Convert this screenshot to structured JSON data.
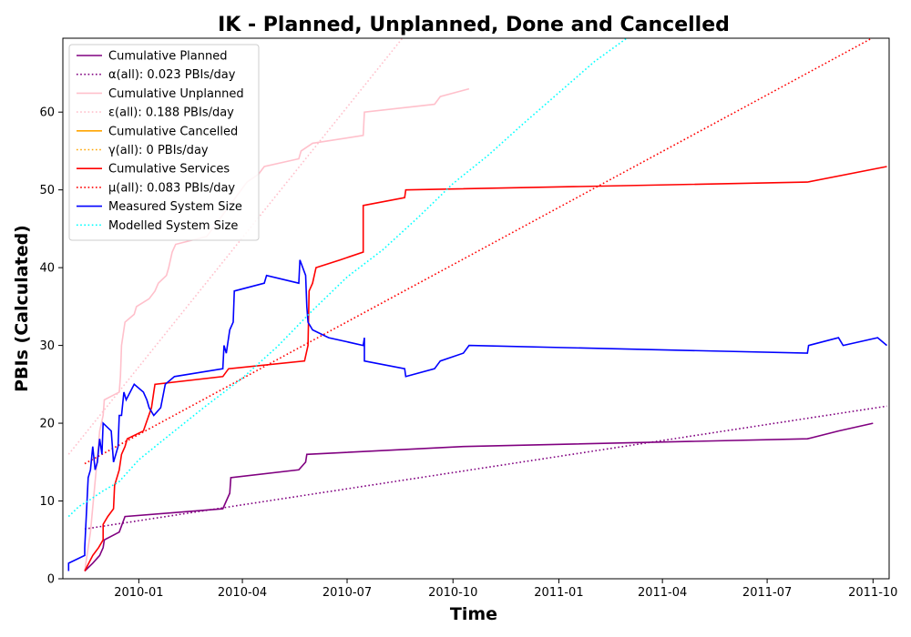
{
  "chart_data": {
    "type": "line",
    "title": "IK - Planned, Unplanned, Done  and Cancelled",
    "xlabel": "Time",
    "ylabel": "PBIs (Calculated)",
    "xlim": [
      "2009-10-27",
      "2011-10-15"
    ],
    "ylim": [
      0,
      69.5
    ],
    "x_ticks": [
      "2010-01",
      "2010-04",
      "2010-07",
      "2010-10",
      "2011-01",
      "2011-04",
      "2011-07",
      "2011-10"
    ],
    "y_ticks": [
      0,
      10,
      20,
      30,
      40,
      50,
      60
    ],
    "grid": false,
    "legend_position": "upper-left",
    "series": [
      {
        "name": "Cumulative Planned",
        "style": "solid",
        "color": "#800080",
        "points": [
          [
            "2009-11-15",
            1
          ],
          [
            "2009-11-22",
            2
          ],
          [
            "2009-11-28",
            3
          ],
          [
            "2009-12-01",
            4
          ],
          [
            "2009-12-02",
            5
          ],
          [
            "2009-12-15",
            6
          ],
          [
            "2009-12-20",
            8
          ],
          [
            "2010-03-15",
            9
          ],
          [
            "2010-03-18",
            10
          ],
          [
            "2010-03-21",
            11
          ],
          [
            "2010-03-22",
            13
          ],
          [
            "2010-05-20",
            14
          ],
          [
            "2010-05-26",
            15
          ],
          [
            "2010-05-27",
            16
          ],
          [
            "2010-10-10",
            17
          ],
          [
            "2011-08-05",
            18
          ],
          [
            "2011-09-01",
            19
          ],
          [
            "2011-10-01",
            20
          ]
        ]
      },
      {
        "name": "α(all): 0.023 PBIs/day",
        "style": "dotted",
        "color": "#800080",
        "points": [
          [
            "2009-11-15",
            6.4
          ],
          [
            "2011-10-13",
            22.2
          ]
        ]
      },
      {
        "name": "Cumulative Unplanned",
        "style": "solid",
        "color": "#ffc0cb",
        "points": [
          [
            "2009-11-15",
            1
          ],
          [
            "2009-11-20",
            6
          ],
          [
            "2009-11-25",
            14
          ],
          [
            "2009-11-28",
            19
          ],
          [
            "2009-12-01",
            21
          ],
          [
            "2009-12-02",
            23
          ],
          [
            "2009-12-15",
            24
          ],
          [
            "2009-12-16",
            26
          ],
          [
            "2009-12-17",
            30
          ],
          [
            "2009-12-20",
            33
          ],
          [
            "2009-12-28",
            34
          ],
          [
            "2009-12-30",
            35
          ],
          [
            "2010-01-10",
            36
          ],
          [
            "2010-01-15",
            37
          ],
          [
            "2010-01-18",
            38
          ],
          [
            "2010-01-25",
            39
          ],
          [
            "2010-01-27",
            40
          ],
          [
            "2010-01-30",
            42
          ],
          [
            "2010-02-02",
            43
          ],
          [
            "2010-03-01",
            44
          ],
          [
            "2010-04-05",
            51
          ],
          [
            "2010-04-15",
            52
          ],
          [
            "2010-04-20",
            53
          ],
          [
            "2010-05-20",
            54
          ],
          [
            "2010-05-22",
            55
          ],
          [
            "2010-06-01",
            56
          ],
          [
            "2010-07-15",
            57
          ],
          [
            "2010-07-16",
            60
          ],
          [
            "2010-09-15",
            61
          ],
          [
            "2010-09-20",
            62
          ],
          [
            "2010-10-15",
            63
          ]
        ]
      },
      {
        "name": "ε(all): 0.188 PBIs/day",
        "style": "dotted",
        "color": "#ffc0cb",
        "points": [
          [
            "2009-11-01",
            16
          ],
          [
            "2010-08-18",
            69.5
          ]
        ]
      },
      {
        "name": "Cumulative Cancelled",
        "style": "solid",
        "color": "#ffa500",
        "points": []
      },
      {
        "name": "γ(all): 0 PBIs/day",
        "style": "dotted",
        "color": "#ffa500",
        "points": []
      },
      {
        "name": "Cumulative Services",
        "style": "solid",
        "color": "#ff0000",
        "points": [
          [
            "2009-11-15",
            1
          ],
          [
            "2009-11-22",
            3
          ],
          [
            "2009-11-27",
            4
          ],
          [
            "2009-12-01",
            5
          ],
          [
            "2009-12-01",
            7
          ],
          [
            "2009-12-05",
            8
          ],
          [
            "2009-12-10",
            9
          ],
          [
            "2009-12-11",
            12
          ],
          [
            "2009-12-15",
            14
          ],
          [
            "2009-12-17",
            16
          ],
          [
            "2009-12-20",
            17
          ],
          [
            "2009-12-22",
            18
          ],
          [
            "2010-01-05",
            19
          ],
          [
            "2010-01-12",
            22
          ],
          [
            "2010-01-14",
            24
          ],
          [
            "2010-01-15",
            25
          ],
          [
            "2010-03-15",
            26
          ],
          [
            "2010-03-20",
            27
          ],
          [
            "2010-05-25",
            28
          ],
          [
            "2010-05-28",
            30
          ],
          [
            "2010-05-29",
            37
          ],
          [
            "2010-06-01",
            38
          ],
          [
            "2010-06-04",
            40
          ],
          [
            "2010-06-25",
            41
          ],
          [
            "2010-07-15",
            42
          ],
          [
            "2010-07-15",
            48
          ],
          [
            "2010-08-20",
            49
          ],
          [
            "2010-08-21",
            50
          ],
          [
            "2011-08-05",
            51
          ],
          [
            "2011-10-13",
            53
          ]
        ]
      },
      {
        "name": "μ(all): 0.083 PBIs/day",
        "style": "dotted",
        "color": "#ff0000",
        "points": [
          [
            "2009-11-15",
            14.8
          ],
          [
            "2011-09-30",
            69.5
          ]
        ]
      },
      {
        "name": "Measured System Size",
        "style": "solid",
        "color": "#0000ff",
        "points": [
          [
            "2009-11-01",
            1
          ],
          [
            "2009-11-01",
            2
          ],
          [
            "2009-11-15",
            3
          ],
          [
            "2009-11-15",
            4
          ],
          [
            "2009-11-18",
            13
          ],
          [
            "2009-11-20",
            14
          ],
          [
            "2009-11-22",
            17
          ],
          [
            "2009-11-24",
            14
          ],
          [
            "2009-11-26",
            15
          ],
          [
            "2009-11-28",
            18
          ],
          [
            "2009-11-30",
            16
          ],
          [
            "2009-12-01",
            20
          ],
          [
            "2009-12-08",
            19
          ],
          [
            "2009-12-10",
            15
          ],
          [
            "2009-12-12",
            16
          ],
          [
            "2009-12-14",
            17
          ],
          [
            "2009-12-15",
            21
          ],
          [
            "2009-12-17",
            21
          ],
          [
            "2009-12-19",
            24
          ],
          [
            "2009-12-21",
            23
          ],
          [
            "2009-12-28",
            25
          ],
          [
            "2010-01-05",
            24
          ],
          [
            "2010-01-08",
            23
          ],
          [
            "2010-01-10",
            22
          ],
          [
            "2010-01-14",
            21
          ],
          [
            "2010-01-20",
            22
          ],
          [
            "2010-01-24",
            25
          ],
          [
            "2010-02-01",
            26
          ],
          [
            "2010-03-15",
            27
          ],
          [
            "2010-03-16",
            30
          ],
          [
            "2010-03-18",
            29
          ],
          [
            "2010-03-21",
            32
          ],
          [
            "2010-03-24",
            33
          ],
          [
            "2010-03-25",
            37
          ],
          [
            "2010-04-20",
            38
          ],
          [
            "2010-04-22",
            39
          ],
          [
            "2010-05-20",
            38
          ],
          [
            "2010-05-21",
            41
          ],
          [
            "2010-05-26",
            39
          ],
          [
            "2010-05-27",
            35
          ],
          [
            "2010-05-28",
            33
          ],
          [
            "2010-06-01",
            32
          ],
          [
            "2010-06-15",
            31
          ],
          [
            "2010-07-15",
            30
          ],
          [
            "2010-07-16",
            31
          ],
          [
            "2010-07-16",
            28
          ],
          [
            "2010-08-20",
            27
          ],
          [
            "2010-08-21",
            26
          ],
          [
            "2010-09-15",
            27
          ],
          [
            "2010-09-20",
            28
          ],
          [
            "2010-10-10",
            29
          ],
          [
            "2010-10-15",
            30
          ],
          [
            "2011-08-05",
            29
          ],
          [
            "2011-08-06",
            30
          ],
          [
            "2011-09-01",
            31
          ],
          [
            "2011-09-05",
            30
          ],
          [
            "2011-10-05",
            31
          ],
          [
            "2011-10-13",
            30
          ]
        ]
      },
      {
        "name": "Modelled System Size",
        "style": "dotted",
        "color": "#00ffff",
        "points": [
          [
            "2009-11-01",
            8
          ],
          [
            "2009-11-10",
            9.3
          ],
          [
            "2009-11-20",
            10.2
          ],
          [
            "2009-12-01",
            11.3
          ],
          [
            "2009-12-15",
            12.5
          ],
          [
            "2010-01-01",
            15.3
          ],
          [
            "2010-02-01",
            19
          ],
          [
            "2010-03-01",
            22.3
          ],
          [
            "2010-04-01",
            25.8
          ],
          [
            "2010-05-01",
            29.8
          ],
          [
            "2010-06-01",
            34.5
          ],
          [
            "2010-07-01",
            38.8
          ],
          [
            "2010-08-01",
            42.3
          ],
          [
            "2010-09-01",
            46.5
          ],
          [
            "2010-10-01",
            50.8
          ],
          [
            "2010-11-01",
            54.5
          ],
          [
            "2010-12-01",
            58.5
          ],
          [
            "2011-01-01",
            62.5
          ],
          [
            "2011-02-01",
            66.5
          ],
          [
            "2011-03-01",
            69.5
          ]
        ]
      }
    ]
  }
}
